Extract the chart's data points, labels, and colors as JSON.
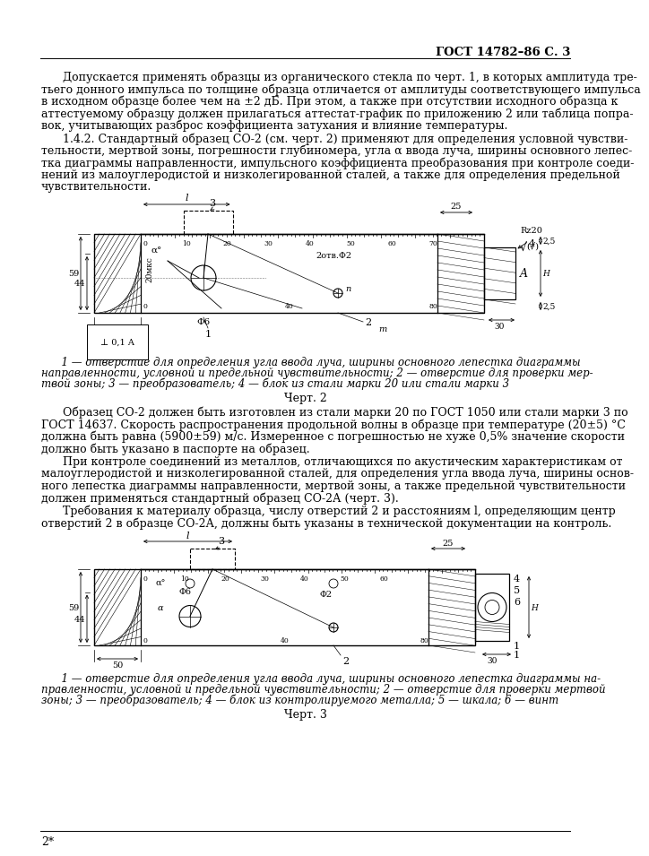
{
  "page_header": "ГОСТ 14782–86 С. 3",
  "paragraph1_lines": [
    "      Допускается применять образцы из органического стекла по черт. 1, в которых амплитуда тре-",
    "тьего донного импульса по толщине образца отличается от амплитуды соответствующего импульса",
    "в исходном образце более чем на ±2 дБ. При этом, а также при отсутствии исходного образца к",
    "аттестуемому образцу должен прилагаться аттестат-график по приложению 2 или таблица попра-",
    "вок, учитывающих разброс коэффициента затухания и влияние температуры."
  ],
  "paragraph2_lines": [
    "      1.4.2. Стандартный образец СО-2 (см. черт. 2) применяют для определения условной чувстви-",
    "тельности, мертвой зоны, погрешности глубиномера, угла α ввода луча, ширины основного лепес-",
    "тка диаграммы направленности, импульсного коэффициента преобразования при контроле соеди-",
    "нений из малоуглеродистой и низколегированной сталей, а также для определения предельной",
    "чувствительности."
  ],
  "legend2_lines": [
    "      1 — отверстие для определения угла ввода луча, ширины основного лепестка диаграммы",
    "направленности, условной и предельной чувствительности; 2 — отверстие для проверки мер-",
    "твой зоны; 3 — преобразователь; 4 — блок из стали марки 20 или стали марки 3"
  ],
  "caption2": "Черт. 2",
  "paragraph3_lines": [
    "      Образец СО-2 должен быть изготовлен из стали марки 20 по ГОСТ 1050 или стали марки 3 по",
    "ГОСТ 14637. Скорость распространения продольной волны в образце при температуре (20±5) °С",
    "должна быть равна (5900±59) м/с. Измеренное с погрешностью не хуже 0,5% значение скорости",
    "должно быть указано в паспорте на образец."
  ],
  "paragraph4_lines": [
    "      При контроле соединений из металлов, отличающихся по акустическим характеристикам от",
    "малоуглеродистой и низколегированной сталей, для определения угла ввода луча, ширины основ-",
    "ного лепестка диаграммы направленности, мертвой зоны, а также предельной чувствительности",
    "должен применяться стандартный образец СО-2А (черт. 3)."
  ],
  "paragraph5_lines": [
    "      Требования к материалу образца, числу отверстий 2 и расстояниям l, определяющим центр",
    "отверстий 2 в образце СО-2А, должны быть указаны в технической документации на контроль."
  ],
  "legend3_lines": [
    "      1 — отверстие для определения угла ввода луча, ширины основного лепестка диаграммы на-",
    "правленности, условной и предельной чувствительности; 2 — отверстие для проверки мертвой",
    "зоны; 3 — преобразователь; 4 — блок из контролируемого металла; 5 — шкала; 6 — винт"
  ],
  "caption3": "Черт. 3",
  "footer": "2*",
  "bg": "#ffffff",
  "fg": "#000000",
  "lh": 13.5
}
